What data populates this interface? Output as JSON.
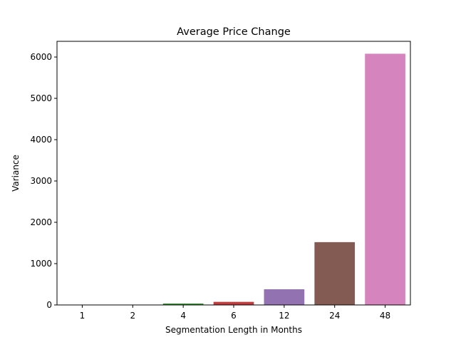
{
  "chart_data": {
    "type": "bar",
    "title": "Average Price Change",
    "xlabel": "Segmentation Length in Months",
    "ylabel": "Variance",
    "categories": [
      "1",
      "2",
      "4",
      "6",
      "12",
      "24",
      "48"
    ],
    "values": [
      2,
      8,
      35,
      75,
      380,
      1520,
      6080
    ],
    "colors": [
      "#1f77b4",
      "#ff7f0e",
      "#3a923a",
      "#c03d3e",
      "#9372b2",
      "#845b53",
      "#d684bd"
    ],
    "ylim": [
      0,
      6380
    ],
    "yticks": [
      0,
      1000,
      2000,
      3000,
      4000,
      5000,
      6000
    ],
    "grid": false,
    "legend": false
  }
}
